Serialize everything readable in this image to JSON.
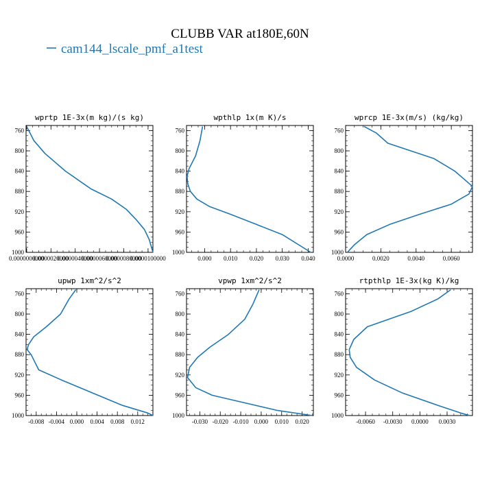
{
  "figure": {
    "title": "CLUBB VAR at180E,60N",
    "legend_label": "cam144_lscale_pmf_a1test",
    "line_color": "#1f77b4"
  },
  "chart_data": [
    {
      "type": "line",
      "title": "wprtp  1E-3x(m kg)/(s kg)",
      "series": [
        {
          "name": "cam144_lscale_pmf_a1test",
          "x": [
            0.0,
            6e-07,
            1.5e-06,
            3.2e-06,
            5.3e-06,
            7e-06,
            8.2e-06,
            9e-06,
            9.7e-06,
            1.01e-05,
            1.04e-05
          ],
          "y": [
            752,
            780,
            805,
            840,
            875,
            895,
            915,
            935,
            955,
            975,
            1000
          ]
        }
      ],
      "xlim": [
        -5e-08,
        1.04e-05
      ],
      "ylim": [
        1000,
        750
      ],
      "xticks": [
        0.0,
        2e-06,
        4e-06,
        6e-06,
        8e-06,
        1e-05
      ],
      "xtick_labels": [
        "0.0000000000",
        "0.0000020000",
        "0.0000040000",
        "0.0000060000",
        "0.0000080000",
        "0.0000100000"
      ],
      "yticks": [
        760,
        800,
        840,
        880,
        920,
        960,
        1000
      ],
      "ytick_labels": [
        "760",
        "800",
        "840",
        "880",
        "920",
        "960",
        "1000"
      ]
    },
    {
      "type": "line",
      "title": "wpthlp  1x(m K)/s",
      "series": [
        {
          "name": "cam144_lscale_pmf_a1test",
          "x": [
            -0.0008,
            -0.0018,
            -0.0035,
            -0.006,
            -0.0068,
            -0.0065,
            -0.0055,
            -0.003,
            0.002,
            0.01,
            0.02,
            0.03,
            0.041
          ],
          "y": [
            752,
            780,
            810,
            835,
            850,
            865,
            880,
            895,
            910,
            925,
            945,
            965,
            1000
          ]
        }
      ],
      "xlim": [
        -0.007,
        0.042
      ],
      "ylim": [
        1000,
        750
      ],
      "xticks": [
        0.0,
        0.01,
        0.02,
        0.03,
        0.04
      ],
      "xtick_labels": [
        "0.000",
        "0.010",
        "0.020",
        "0.030",
        "0.040"
      ],
      "yticks": [
        760,
        800,
        840,
        880,
        920,
        960,
        1000
      ],
      "ytick_labels": [
        "760",
        "800",
        "840",
        "880",
        "920",
        "960",
        "1000"
      ]
    },
    {
      "type": "line",
      "title": "wprcp  1E-3x(m/s) (kg/kg)",
      "series": [
        {
          "name": "cam144_lscale_pmf_a1test",
          "x": [
            0.00105,
            0.00175,
            0.0024,
            0.005,
            0.0062,
            0.0072,
            0.007,
            0.006,
            0.0042,
            0.0025,
            0.0012,
            0.0005,
            0.0001
          ],
          "y": [
            752,
            765,
            785,
            815,
            840,
            870,
            885,
            905,
            925,
            945,
            965,
            985,
            1000
          ]
        }
      ],
      "xlim": [
        0.0,
        0.0072
      ],
      "ylim": [
        1000,
        750
      ],
      "xticks": [
        0.0,
        0.002,
        0.004,
        0.006
      ],
      "xtick_labels": [
        "0.0000",
        "0.0020",
        "0.0040",
        "0.0060"
      ],
      "yticks": [
        760,
        800,
        840,
        880,
        920,
        960,
        1000
      ],
      "ytick_labels": [
        "760",
        "800",
        "840",
        "880",
        "920",
        "960",
        "1000"
      ]
    },
    {
      "type": "line",
      "title": "upwp  1xm^2/s^2",
      "series": [
        {
          "name": "cam144_lscale_pmf_a1test",
          "x": [
            -0.0002,
            -0.0015,
            -0.0032,
            -0.006,
            -0.0085,
            -0.0095,
            -0.0098,
            -0.009,
            -0.0075,
            -0.003,
            0.003,
            0.009,
            0.014,
            0.015
          ],
          "y": [
            752,
            770,
            800,
            825,
            845,
            860,
            870,
            880,
            910,
            930,
            955,
            980,
            995,
            1000
          ]
        }
      ],
      "xlim": [
        -0.01,
        0.015
      ],
      "ylim": [
        1000,
        750
      ],
      "xticks": [
        -0.008,
        -0.004,
        0.0,
        0.004,
        0.008,
        0.012
      ],
      "xtick_labels": [
        "-0.008",
        "-0.004",
        "0.000",
        "0.004",
        "0.008",
        "0.012"
      ],
      "yticks": [
        760,
        800,
        840,
        880,
        920,
        960,
        1000
      ],
      "ytick_labels": [
        "760",
        "800",
        "840",
        "880",
        "920",
        "960",
        "1000"
      ]
    },
    {
      "type": "line",
      "title": "vpwp  1xm^2/s^2",
      "series": [
        {
          "name": "cam144_lscale_pmf_a1test",
          "x": [
            -0.001,
            -0.004,
            -0.008,
            -0.016,
            -0.025,
            -0.031,
            -0.035,
            -0.036,
            -0.032,
            -0.024,
            -0.008,
            0.008,
            0.025
          ],
          "y": [
            752,
            780,
            810,
            840,
            865,
            885,
            905,
            925,
            945,
            960,
            975,
            990,
            1000
          ]
        }
      ],
      "xlim": [
        -0.0365,
        0.0255
      ],
      "ylim": [
        1000,
        750
      ],
      "xticks": [
        -0.03,
        -0.02,
        -0.01,
        0.0,
        0.01,
        0.02
      ],
      "xtick_labels": [
        "-0.030",
        "-0.020",
        "-0.010",
        "0.000",
        "0.010",
        "0.020"
      ],
      "yticks": [
        760,
        800,
        840,
        880,
        920,
        960,
        1000
      ],
      "ytick_labels": [
        "760",
        "800",
        "840",
        "880",
        "920",
        "960",
        "1000"
      ]
    },
    {
      "type": "line",
      "title": "rtpthlp  1E-3x(kg K)/kg",
      "series": [
        {
          "name": "cam144_lscale_pmf_a1test",
          "x": [
            0.0034,
            0.002,
            -0.001,
            -0.0058,
            -0.0073,
            -0.0078,
            -0.0077,
            -0.007,
            -0.005,
            -0.002,
            0.002,
            0.0045,
            0.0055
          ],
          "y": [
            752,
            770,
            795,
            825,
            850,
            870,
            885,
            905,
            930,
            955,
            980,
            995,
            1000
          ]
        }
      ],
      "xlim": [
        -0.0082,
        0.0058
      ],
      "ylim": [
        1000,
        750
      ],
      "xticks": [
        -0.006,
        -0.003,
        0.0,
        0.003
      ],
      "xtick_labels": [
        "-0.0060",
        "-0.0030",
        "0.0000",
        "0.0030"
      ],
      "yticks": [
        760,
        800,
        840,
        880,
        920,
        960,
        1000
      ],
      "ytick_labels": [
        "760",
        "800",
        "840",
        "880",
        "920",
        "960",
        "1000"
      ]
    }
  ]
}
